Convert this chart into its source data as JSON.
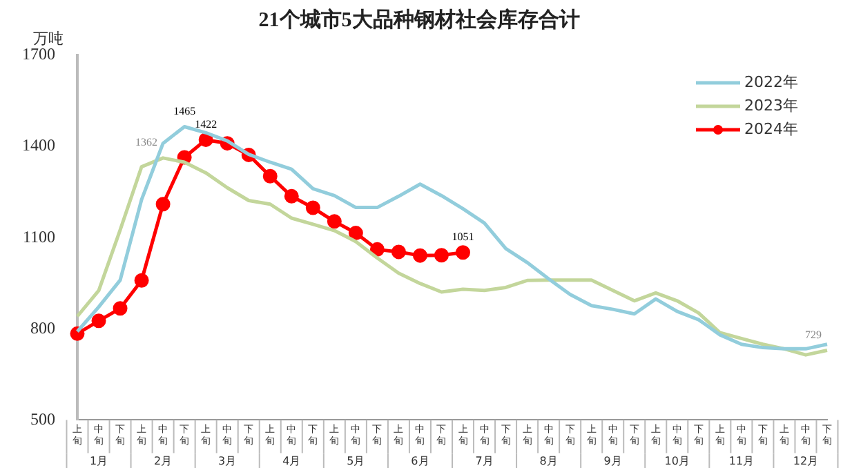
{
  "chart_data": {
    "type": "line",
    "title": "21个城市5大品种钢材社会库存合计",
    "ylabel": "万吨",
    "categories": [
      "上旬",
      "中旬",
      "下旬",
      "上旬",
      "中旬",
      "下旬",
      "上旬",
      "中旬",
      "下旬",
      "上旬",
      "中旬",
      "下旬",
      "上旬",
      "中旬",
      "下旬",
      "上旬",
      "中旬",
      "下旬",
      "上旬",
      "中旬",
      "下旬",
      "上旬",
      "中旬",
      "下旬",
      "上旬",
      "中旬",
      "下旬",
      "上旬",
      "中旬",
      "下旬",
      "上旬",
      "中旬",
      "下旬",
      "上旬",
      "中旬",
      "下旬"
    ],
    "annotations": [
      "1月",
      "2月",
      "3月",
      "4月",
      "5月",
      "6月",
      "7月",
      "8月",
      "9月",
      "10月",
      "11月",
      "12月"
    ],
    "series": [
      {
        "name": "2022年",
        "color": "#92cddc",
        "values": [
          791,
          872,
          960,
          1225,
          1410,
          1465,
          1445,
          1418,
          1374,
          1348,
          1325,
          1261,
          1238,
          1199,
          1199,
          1236,
          1276,
          1238,
          1195,
          1148,
          1064,
          1018,
          964,
          913,
          876,
          864,
          849,
          898,
          857,
          830,
          780,
          749,
          738,
          734,
          734,
          749
        ],
        "value_labels": [
          null,
          null,
          null,
          null,
          null,
          "1465",
          null,
          null,
          null,
          null,
          null,
          null,
          null,
          null,
          null,
          null,
          null,
          null,
          null,
          null,
          null,
          null,
          null,
          null,
          null,
          null,
          null,
          null,
          null,
          null,
          null,
          null,
          null,
          null,
          null,
          null
        ]
      },
      {
        "name": "2023年",
        "color": "#c3d69b",
        "values": [
          841,
          926,
          1125,
          1333,
          1362,
          1348,
          1313,
          1264,
          1222,
          1210,
          1164,
          1144,
          1123,
          1087,
          1033,
          983,
          949,
          921,
          930,
          926,
          936,
          959,
          960,
          960,
          960,
          926,
          892,
          918,
          892,
          852,
          787,
          768,
          749,
          734,
          714,
          729
        ],
        "value_labels": [
          null,
          null,
          null,
          null,
          "1362",
          null,
          null,
          null,
          null,
          null,
          null,
          null,
          null,
          null,
          null,
          null,
          null,
          null,
          null,
          null,
          null,
          null,
          null,
          null,
          null,
          null,
          null,
          null,
          null,
          null,
          null,
          null,
          null,
          null,
          null,
          "729"
        ]
      },
      {
        "name": "2024年",
        "color": "#ff0000",
        "marker": "circle",
        "values": [
          784,
          826,
          867,
          959,
          1210,
          1364,
          1422,
          1410,
          1372,
          1302,
          1236,
          1198,
          1153,
          1115,
          1061,
          1053,
          1041,
          1042,
          1051,
          null,
          null,
          null,
          null,
          null,
          null,
          null,
          null,
          null,
          null,
          null,
          null,
          null,
          null,
          null,
          null,
          null
        ],
        "value_labels": [
          null,
          null,
          null,
          null,
          null,
          null,
          "1422",
          null,
          null,
          null,
          null,
          null,
          null,
          null,
          null,
          null,
          null,
          null,
          "1051",
          null,
          null,
          null,
          null,
          null,
          null,
          null,
          null,
          null,
          null,
          null,
          null,
          null,
          null,
          null,
          null,
          null
        ]
      }
    ],
    "ylim": [
      500,
      1700
    ],
    "yticks": [
      500,
      800,
      1100,
      1400,
      1700
    ],
    "grid": false,
    "legend": "top right",
    "marker": "none"
  }
}
